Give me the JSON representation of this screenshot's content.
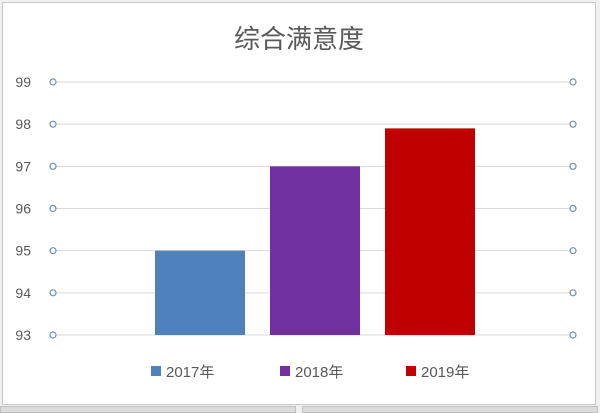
{
  "chart_data": {
    "type": "bar",
    "title": "综合满意度",
    "categories": [
      "2017年",
      "2018年",
      "2019年"
    ],
    "values": [
      95.0,
      97.0,
      97.9
    ],
    "colors": [
      "#4f81bd",
      "#7030a0",
      "#c00000"
    ],
    "ylim": [
      93,
      99
    ],
    "yticks": [
      "93",
      "94",
      "95",
      "96",
      "97",
      "98",
      "99"
    ],
    "grid": true,
    "legend": "bottom",
    "legend_entries": [
      "2017年",
      "2018年",
      "2019年"
    ]
  }
}
